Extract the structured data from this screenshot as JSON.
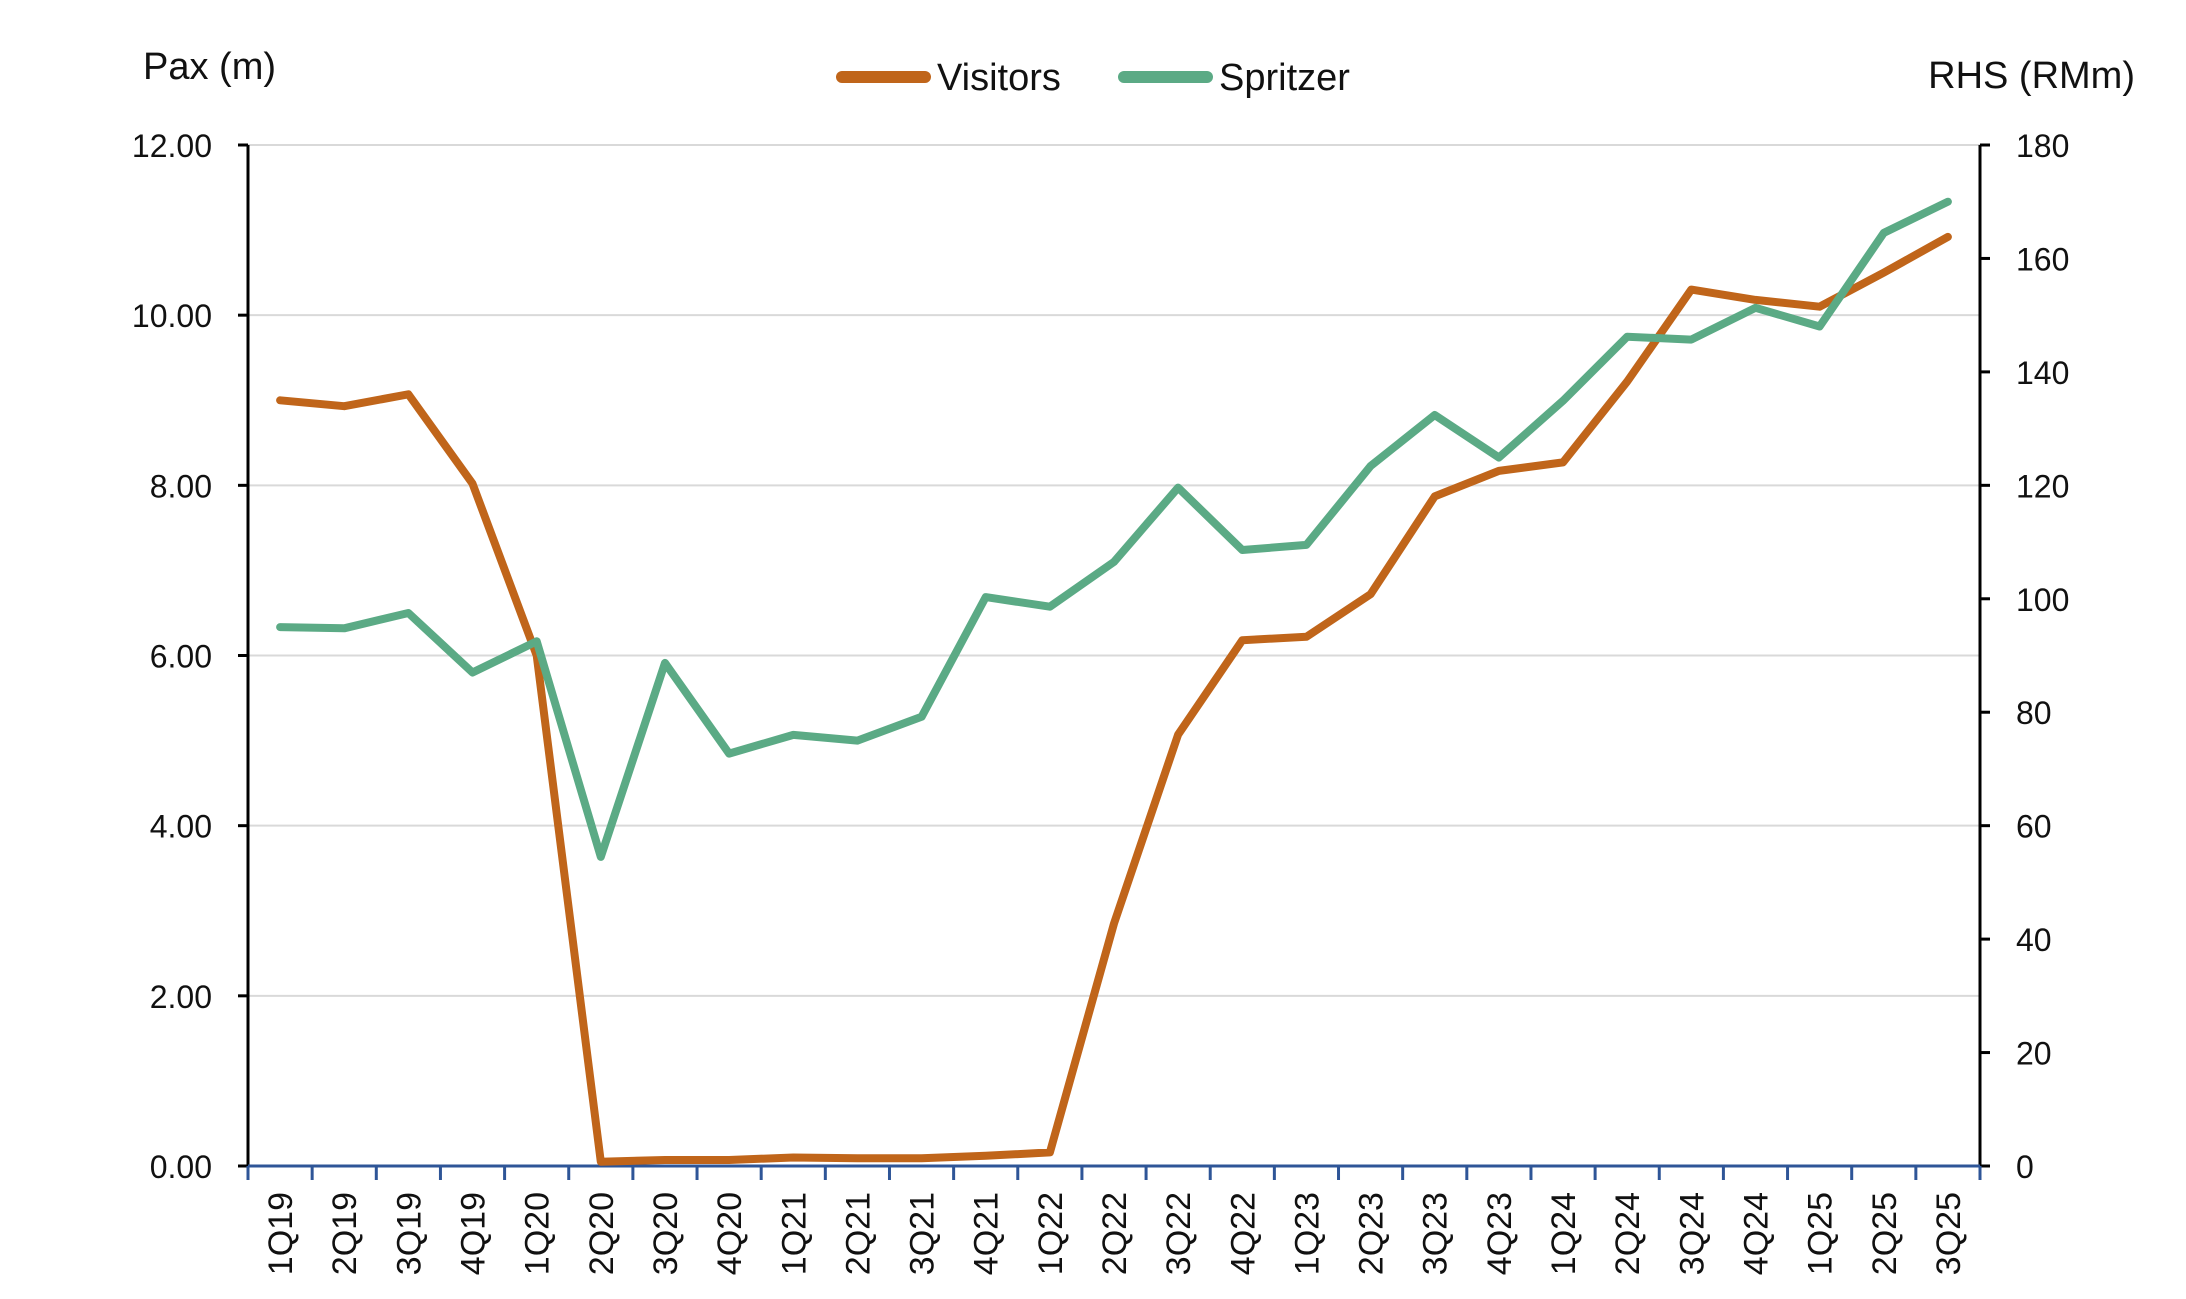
{
  "chart_data": {
    "type": "line",
    "left_axis_title": "Pax (m)",
    "right_axis_title": "RHS (RMm)",
    "legend_position": "top-center",
    "grid": true,
    "categories": [
      "1Q19",
      "2Q19",
      "3Q19",
      "4Q19",
      "1Q20",
      "2Q20",
      "3Q20",
      "4Q20",
      "1Q21",
      "2Q21",
      "3Q21",
      "4Q21",
      "1Q22",
      "2Q22",
      "3Q22",
      "4Q22",
      "1Q23",
      "2Q23",
      "3Q23",
      "4Q23",
      "1Q24",
      "2Q24",
      "3Q24",
      "4Q24",
      "1Q25",
      "2Q25",
      "3Q25"
    ],
    "y_left": {
      "min": 0,
      "max": 12,
      "ticks": [
        "0.00",
        "2.00",
        "4.00",
        "6.00",
        "8.00",
        "10.00",
        "12.00"
      ]
    },
    "y_right": {
      "min": 0,
      "max": 180,
      "ticks": [
        "0",
        "20",
        "40",
        "60",
        "80",
        "100",
        "120",
        "140",
        "160",
        "180"
      ]
    },
    "series": [
      {
        "name": "Visitors",
        "axis": "left",
        "color": "#C0651A",
        "values": [
          9.0,
          8.93,
          9.07,
          8.02,
          6.0,
          0.05,
          0.07,
          0.07,
          0.1,
          0.09,
          0.09,
          0.12,
          0.16,
          2.85,
          5.07,
          6.18,
          6.22,
          6.72,
          7.87,
          8.17,
          8.27,
          9.22,
          10.3,
          10.18,
          10.1,
          10.5,
          10.92
        ]
      },
      {
        "name": "Spritzer",
        "axis": "right",
        "color": "#5BAA85",
        "values": [
          95,
          94.8,
          97.5,
          87,
          92.5,
          54.5,
          88.7,
          72.7,
          76,
          75,
          79.2,
          100.3,
          98.6,
          106.5,
          119.6,
          108.6,
          109.5,
          123.4,
          132.4,
          124.9,
          134.9,
          146.2,
          145.7,
          151.3,
          148,
          164.5,
          170
        ]
      }
    ]
  }
}
